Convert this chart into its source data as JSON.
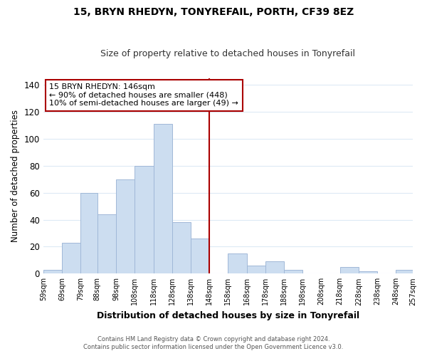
{
  "title": "15, BRYN RHEDYN, TONYREFAIL, PORTH, CF39 8EZ",
  "subtitle": "Size of property relative to detached houses in Tonyrefail",
  "xlabel": "Distribution of detached houses by size in Tonyrefail",
  "ylabel": "Number of detached properties",
  "bar_color": "#ccddf0",
  "bar_edge_color": "#a0b8d8",
  "bin_edges": [
    59,
    69,
    79,
    88,
    98,
    108,
    118,
    128,
    138,
    148,
    158,
    168,
    178,
    188,
    198,
    208,
    218,
    228,
    238,
    248,
    257
  ],
  "bar_heights": [
    3,
    23,
    60,
    44,
    70,
    80,
    111,
    38,
    26,
    0,
    15,
    6,
    9,
    3,
    0,
    0,
    5,
    2,
    0,
    3
  ],
  "tick_labels": [
    "59sqm",
    "69sqm",
    "79sqm",
    "88sqm",
    "98sqm",
    "108sqm",
    "118sqm",
    "128sqm",
    "138sqm",
    "148sqm",
    "158sqm",
    "168sqm",
    "178sqm",
    "188sqm",
    "198sqm",
    "208sqm",
    "218sqm",
    "228sqm",
    "238sqm",
    "248sqm",
    "257sqm"
  ],
  "vline_x": 148,
  "vline_color": "#aa0000",
  "ylim": [
    0,
    145
  ],
  "yticks": [
    0,
    20,
    40,
    60,
    80,
    100,
    120,
    140
  ],
  "annotation_title": "15 BRYN RHEDYN: 146sqm",
  "annotation_line1": "← 90% of detached houses are smaller (448)",
  "annotation_line2": "10% of semi-detached houses are larger (49) →",
  "annotation_box_edge_color": "#aa0000",
  "footer_line1": "Contains HM Land Registry data © Crown copyright and database right 2024.",
  "footer_line2": "Contains public sector information licensed under the Open Government Licence v3.0.",
  "background_color": "#ffffff",
  "grid_color": "#ddeaf5"
}
